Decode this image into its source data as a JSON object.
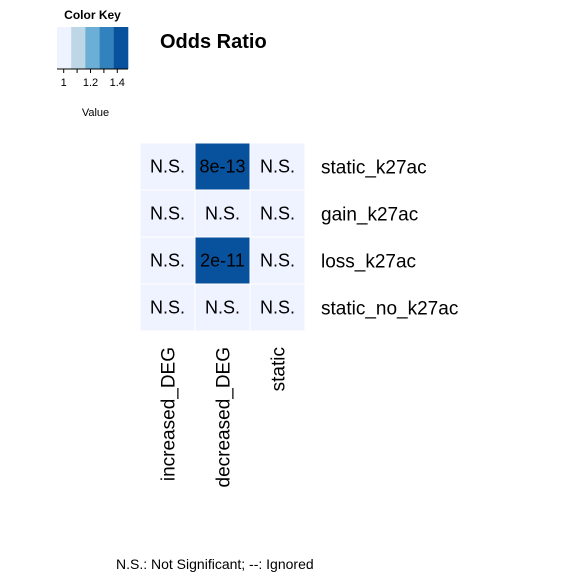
{
  "chart_data": {
    "type": "heatmap",
    "title": "Odds Ratio",
    "columns": [
      "increased_DEG",
      "decreased_DEG",
      "static"
    ],
    "rows": [
      "static_k27ac",
      "gain_k27ac",
      "loss_k27ac",
      "static_no_k27ac"
    ],
    "values": [
      [
        1.0,
        1.45,
        1.0
      ],
      [
        1.0,
        1.0,
        1.0
      ],
      [
        1.0,
        1.45,
        1.0
      ],
      [
        1.0,
        1.0,
        1.0
      ]
    ],
    "cell_labels": [
      [
        "N.S.",
        "8e-13",
        "N.S."
      ],
      [
        "N.S.",
        "N.S.",
        "N.S."
      ],
      [
        "N.S.",
        "2e-11",
        "N.S."
      ],
      [
        "N.S.",
        "N.S.",
        "N.S."
      ]
    ],
    "color_key": {
      "title": "Color Key",
      "xlabel": "Value",
      "range": [
        0.95,
        1.48
      ],
      "ticks": [
        1,
        1.2,
        1.4
      ],
      "tick_labels": [
        "1",
        "1.2",
        "1.4"
      ],
      "colors": [
        "#eff3ff",
        "#bdd7e7",
        "#6baed6",
        "#3182bd",
        "#08519c"
      ]
    },
    "footnote": "N.S.: Not Significant; --: Ignored"
  }
}
